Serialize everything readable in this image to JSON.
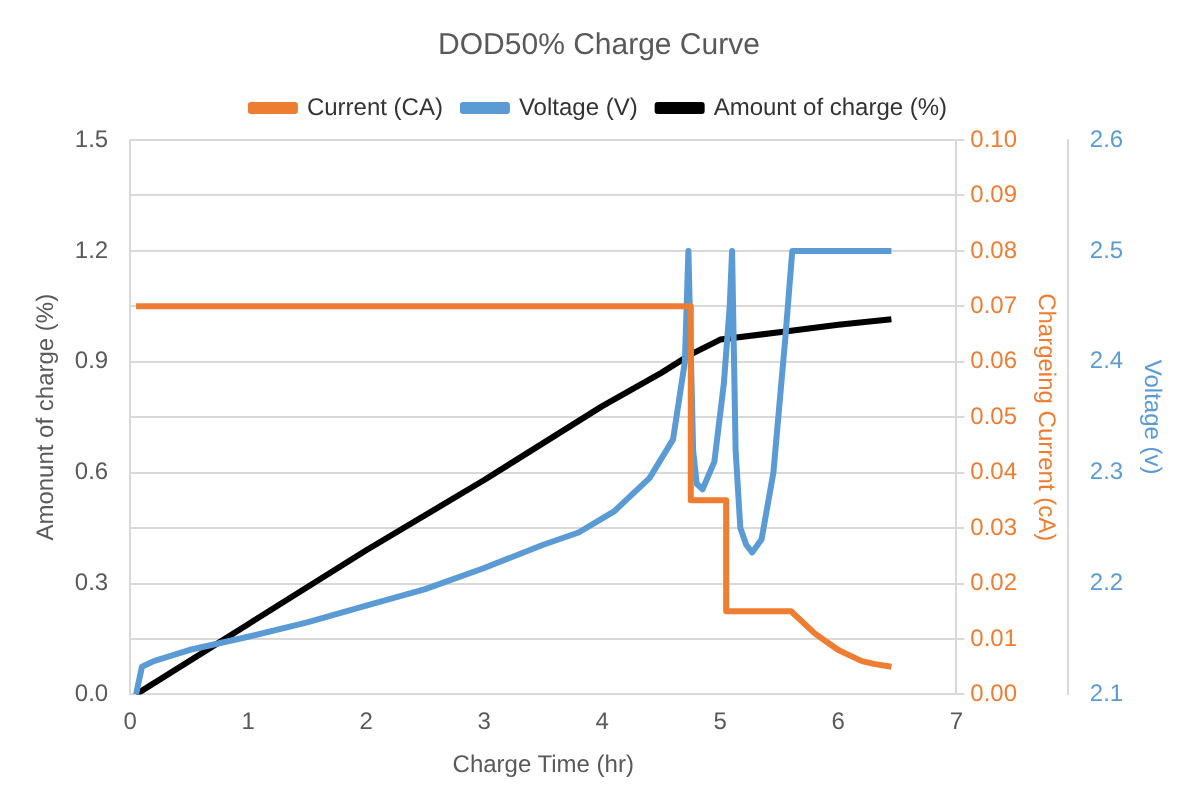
{
  "chart_data": {
    "type": "line",
    "title": "DOD50% Charge Curve",
    "xlabel": "Charge Time (hr)",
    "ylabel": "Amonunt of charge (%)",
    "y2label": "Chargeing Current (cA)",
    "y3label": "Voltage (v)",
    "xlim": [
      0,
      7
    ],
    "xticks": [
      0,
      1,
      2,
      3,
      4,
      5,
      6,
      7
    ],
    "ylim": [
      0,
      1.5
    ],
    "yticks": [
      {
        "value": 0,
        "label": "0.0"
      },
      0.3,
      0.6,
      0.9,
      1.2,
      1.5
    ],
    "y2lim": [
      0,
      0.1
    ],
    "y2ticks": [
      {
        "value": 0,
        "label": "0.00"
      },
      0.01,
      0.02,
      0.03,
      0.04,
      0.05,
      0.06,
      0.07,
      0.08,
      0.09,
      {
        "value": 0.1,
        "label": "0.10"
      }
    ],
    "y3lim": [
      2.1,
      2.6
    ],
    "y3ticks": [
      2.1,
      2.2,
      2.3,
      2.4,
      2.5,
      2.6
    ],
    "grid": "y",
    "legend": "top",
    "line_style": "solid",
    "marker": "none",
    "series": [
      {
        "name": "Current (CA)",
        "color": "#ed7d31",
        "axis": "y2",
        "x": [
          0.05,
          4.75,
          4.75,
          5.05,
          5.05,
          5.6,
          5.7,
          5.8,
          5.9,
          6.0,
          6.1,
          6.2,
          6.3,
          6.45
        ],
        "values": [
          0.07,
          0.07,
          0.035,
          0.035,
          0.015,
          0.015,
          0.013,
          0.011,
          0.0095,
          0.008,
          0.007,
          0.006,
          0.0055,
          0.005
        ]
      },
      {
        "name": "Voltage (V)",
        "color": "#5b9bd5",
        "axis": "y3",
        "x": [
          0.05,
          0.1,
          0.2,
          0.5,
          1,
          1.5,
          2,
          2.5,
          3,
          3.5,
          3.8,
          4.1,
          4.4,
          4.6,
          4.7,
          4.73,
          4.77,
          4.8,
          4.85,
          4.95,
          5.03,
          5.08,
          5.1,
          5.13,
          5.17,
          5.22,
          5.27,
          5.35,
          5.45,
          5.55,
          5.61,
          6,
          6.45
        ],
        "values": [
          2.1,
          2.125,
          2.13,
          2.14,
          2.152,
          2.165,
          2.18,
          2.195,
          2.214,
          2.235,
          2.246,
          2.265,
          2.295,
          2.33,
          2.4,
          2.5,
          2.32,
          2.29,
          2.285,
          2.31,
          2.38,
          2.45,
          2.5,
          2.32,
          2.25,
          2.235,
          2.228,
          2.24,
          2.3,
          2.42,
          2.5,
          2.5,
          2.5
        ]
      },
      {
        "name": "Amount of charge (%)",
        "color": "#000000",
        "axis": "y",
        "x": [
          0.05,
          1,
          2,
          3,
          4,
          4.5,
          4.75,
          5.0,
          5.5,
          6.0,
          6.45
        ],
        "values": [
          0,
          0.19,
          0.39,
          0.58,
          0.78,
          0.87,
          0.92,
          0.96,
          0.98,
          1.0,
          1.015
        ]
      }
    ]
  }
}
